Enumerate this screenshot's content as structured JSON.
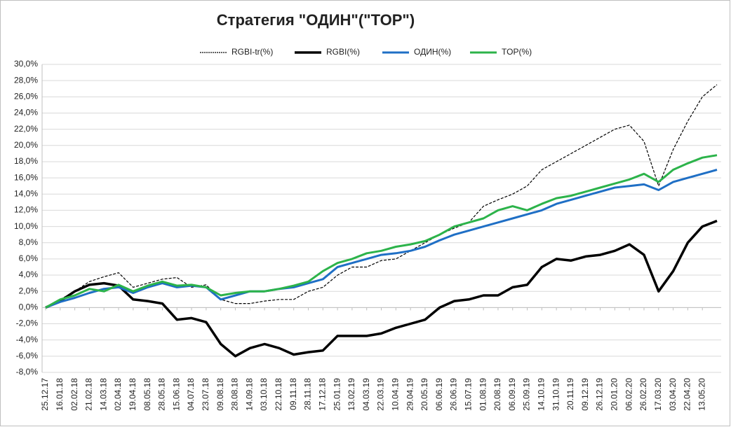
{
  "chart_data": {
    "type": "line",
    "title": "Стратегия \"ОДИН\"(\"TOP\")",
    "categories": [
      "25.12.17",
      "16.01.18",
      "02.02.18",
      "21.02.18",
      "14.03.18",
      "02.04.18",
      "19.04.18",
      "08.05.18",
      "28.05.18",
      "15.06.18",
      "04.07.18",
      "23.07.18",
      "09.08.18",
      "28.08.18",
      "14.09.18",
      "03.10.18",
      "22.10.18",
      "09.11.18",
      "28.11.18",
      "17.12.18",
      "25.01.19",
      "13.02.19",
      "04.03.19",
      "22.03.19",
      "10.04.19",
      "29.04.19",
      "20.05.19",
      "06.06.19",
      "26.06.19",
      "15.07.19",
      "01.08.19",
      "20.08.19",
      "06.09.19",
      "25.09.19",
      "14.10.19",
      "31.10.19",
      "20.11.19",
      "09.12.19",
      "26.12.19",
      "20.01.20",
      "06.02.20",
      "26.02.20",
      "17.03.20",
      "03.04.20",
      "22.04.20",
      "13.05.20",
      null
    ],
    "series": [
      {
        "name": "RGBI-tr(%)",
        "color": "#000000",
        "dashed": true,
        "values": [
          0,
          1.0,
          2.0,
          3.2,
          3.8,
          4.3,
          2.5,
          3.0,
          3.5,
          3.7,
          2.5,
          2.8,
          1.0,
          0.5,
          0.5,
          0.8,
          1.0,
          1.0,
          2.0,
          2.5,
          4.0,
          5.0,
          5.0,
          5.8,
          6.0,
          7.0,
          8.0,
          9.0,
          9.8,
          10.5,
          12.5,
          13.3,
          14.0,
          15.0,
          17.0,
          18.0,
          19.0,
          20.0,
          21.0,
          22.0,
          22.5,
          20.5,
          15.0,
          19.5,
          23.0,
          26.0,
          27.5
        ]
      },
      {
        "name": "RGBI(%)",
        "color": "#000000",
        "values": [
          0,
          0.8,
          2.0,
          2.8,
          3.0,
          2.7,
          1.0,
          0.8,
          0.5,
          -1.5,
          -1.3,
          -1.8,
          -4.5,
          -6.0,
          -5.0,
          -4.5,
          -5.0,
          -5.8,
          -5.5,
          -5.3,
          -3.5,
          -3.5,
          -3.5,
          -3.2,
          -2.5,
          -2.0,
          -1.5,
          0.0,
          0.8,
          1.0,
          1.5,
          1.5,
          2.5,
          2.8,
          5.0,
          6.0,
          5.8,
          6.3,
          6.5,
          7.0,
          7.8,
          6.5,
          2.0,
          4.5,
          8.0,
          10.0,
          10.7
        ]
      },
      {
        "name": "ОДИН(%)",
        "color": "#1f6fc5",
        "values": [
          0,
          0.7,
          1.2,
          1.8,
          2.3,
          2.5,
          1.8,
          2.5,
          3.0,
          2.5,
          2.7,
          2.5,
          1.0,
          1.5,
          2.0,
          2.0,
          2.3,
          2.5,
          3.0,
          3.5,
          5.0,
          5.5,
          6.0,
          6.5,
          6.7,
          7.0,
          7.5,
          8.3,
          9.0,
          9.5,
          10.0,
          10.5,
          11.0,
          11.5,
          12.0,
          12.8,
          13.3,
          13.8,
          14.3,
          14.8,
          15.0,
          15.2,
          14.5,
          15.5,
          16.0,
          16.5,
          17.0
        ]
      },
      {
        "name": "TOP(%)",
        "color": "#2cb34a",
        "values": [
          0,
          1.0,
          1.5,
          2.3,
          2.0,
          2.8,
          2.0,
          2.7,
          3.2,
          2.7,
          2.8,
          2.5,
          1.5,
          1.8,
          2.0,
          2.0,
          2.3,
          2.7,
          3.2,
          4.5,
          5.5,
          6.0,
          6.7,
          7.0,
          7.5,
          7.8,
          8.2,
          9.0,
          10.0,
          10.5,
          11.0,
          12.0,
          12.5,
          12.0,
          12.8,
          13.5,
          13.8,
          14.3,
          14.8,
          15.3,
          15.8,
          16.5,
          15.5,
          17.0,
          17.8,
          18.5,
          18.8
        ]
      }
    ],
    "ylim": [
      -8,
      30
    ],
    "yticks": [
      {
        "value": -8,
        "label": "-8,0%"
      },
      {
        "value": -6,
        "label": "-6,0%"
      },
      {
        "value": -4,
        "label": "-4,0%"
      },
      {
        "value": -2,
        "label": "-2,0%"
      },
      {
        "value": 0,
        "label": "0,0%"
      },
      {
        "value": 2,
        "label": "2,0%"
      },
      {
        "value": 4,
        "label": "4,0%"
      },
      {
        "value": 6,
        "label": "6,0%"
      },
      {
        "value": 8,
        "label": "8,0%"
      },
      {
        "value": 10,
        "label": "10,0%"
      },
      {
        "value": 12,
        "label": "12,0%"
      },
      {
        "value": 14,
        "label": "14,0%"
      },
      {
        "value": 16,
        "label": "16,0%"
      },
      {
        "value": 18,
        "label": "18,0%"
      },
      {
        "value": 20,
        "label": "20,0%"
      },
      {
        "value": 22,
        "label": "22,0%"
      },
      {
        "value": 24,
        "label": "24,0%"
      },
      {
        "value": 26,
        "label": "26,0%"
      },
      {
        "value": 28,
        "label": "28,0%"
      },
      {
        "value": 30,
        "label": "30,0%"
      }
    ],
    "grid": true,
    "legend": "top"
  }
}
